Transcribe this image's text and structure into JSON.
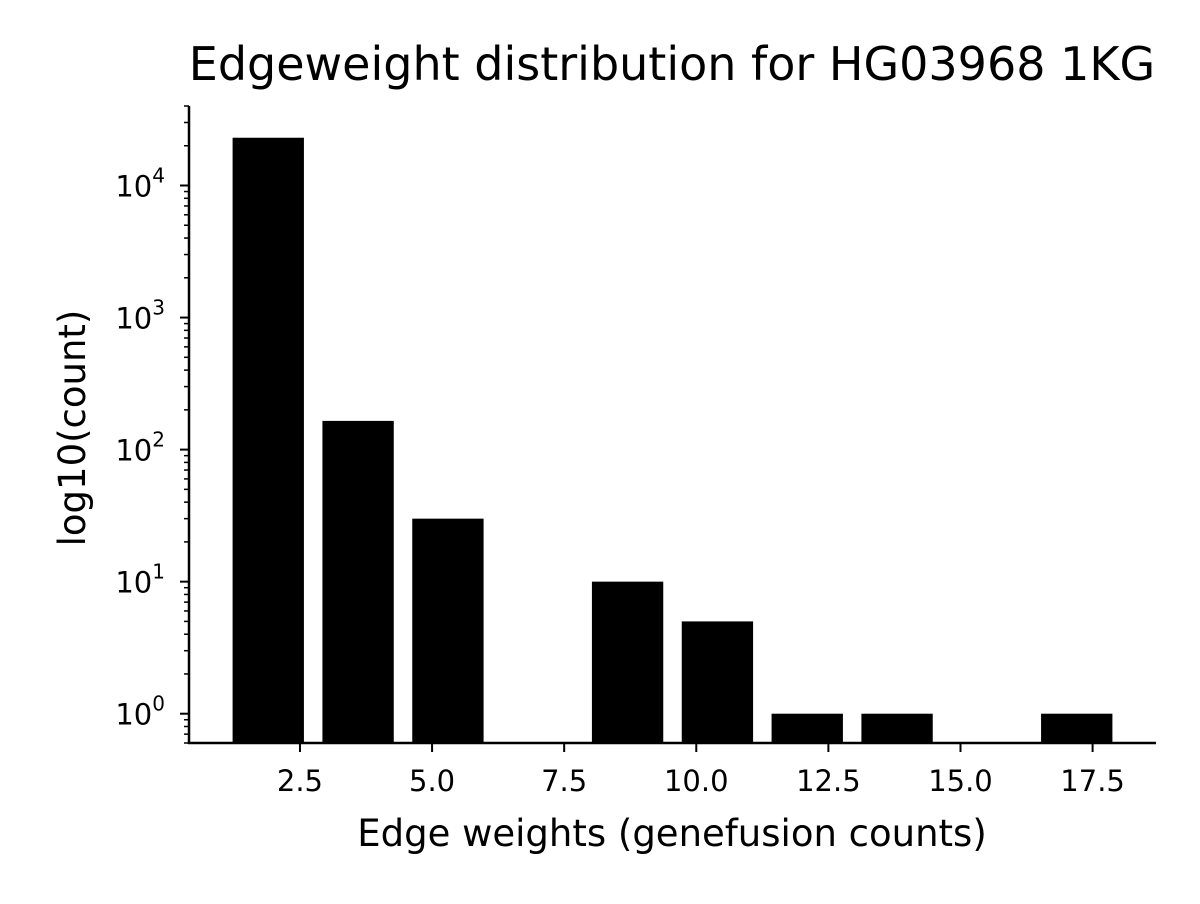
{
  "chart_data": {
    "type": "bar",
    "title": "Edgeweight distribution for HG03968 1KG",
    "xlabel": "Edge weights (genefusion counts)",
    "ylabel": "log10(count)",
    "y_scale": "log",
    "xlim": [
      0.4,
      18.7
    ],
    "ylim": [
      0.6,
      40000
    ],
    "x_ticks": [
      2.5,
      5.0,
      7.5,
      10.0,
      12.5,
      15.0,
      17.5
    ],
    "x_tick_labels": [
      "2.5",
      "5.0",
      "7.5",
      "10.0",
      "12.5",
      "15.0",
      "17.5"
    ],
    "y_ticks": [
      {
        "value": 1,
        "base": "10",
        "exp": "0"
      },
      {
        "value": 10,
        "base": "10",
        "exp": "1"
      },
      {
        "value": 100,
        "base": "10",
        "exp": "2"
      },
      {
        "value": 1000,
        "base": "10",
        "exp": "3"
      },
      {
        "value": 10000,
        "base": "10",
        "exp": "4"
      }
    ],
    "bar_width": 1.35,
    "bars": [
      {
        "x": 1.9,
        "value": 23000
      },
      {
        "x": 3.6,
        "value": 165
      },
      {
        "x": 5.3,
        "value": 30
      },
      {
        "x": 8.7,
        "value": 10
      },
      {
        "x": 10.4,
        "value": 5
      },
      {
        "x": 12.1,
        "value": 1
      },
      {
        "x": 13.8,
        "value": 1
      },
      {
        "x": 17.2,
        "value": 1
      }
    ],
    "bar_color": "#000000",
    "grid": false,
    "legend": "none"
  }
}
